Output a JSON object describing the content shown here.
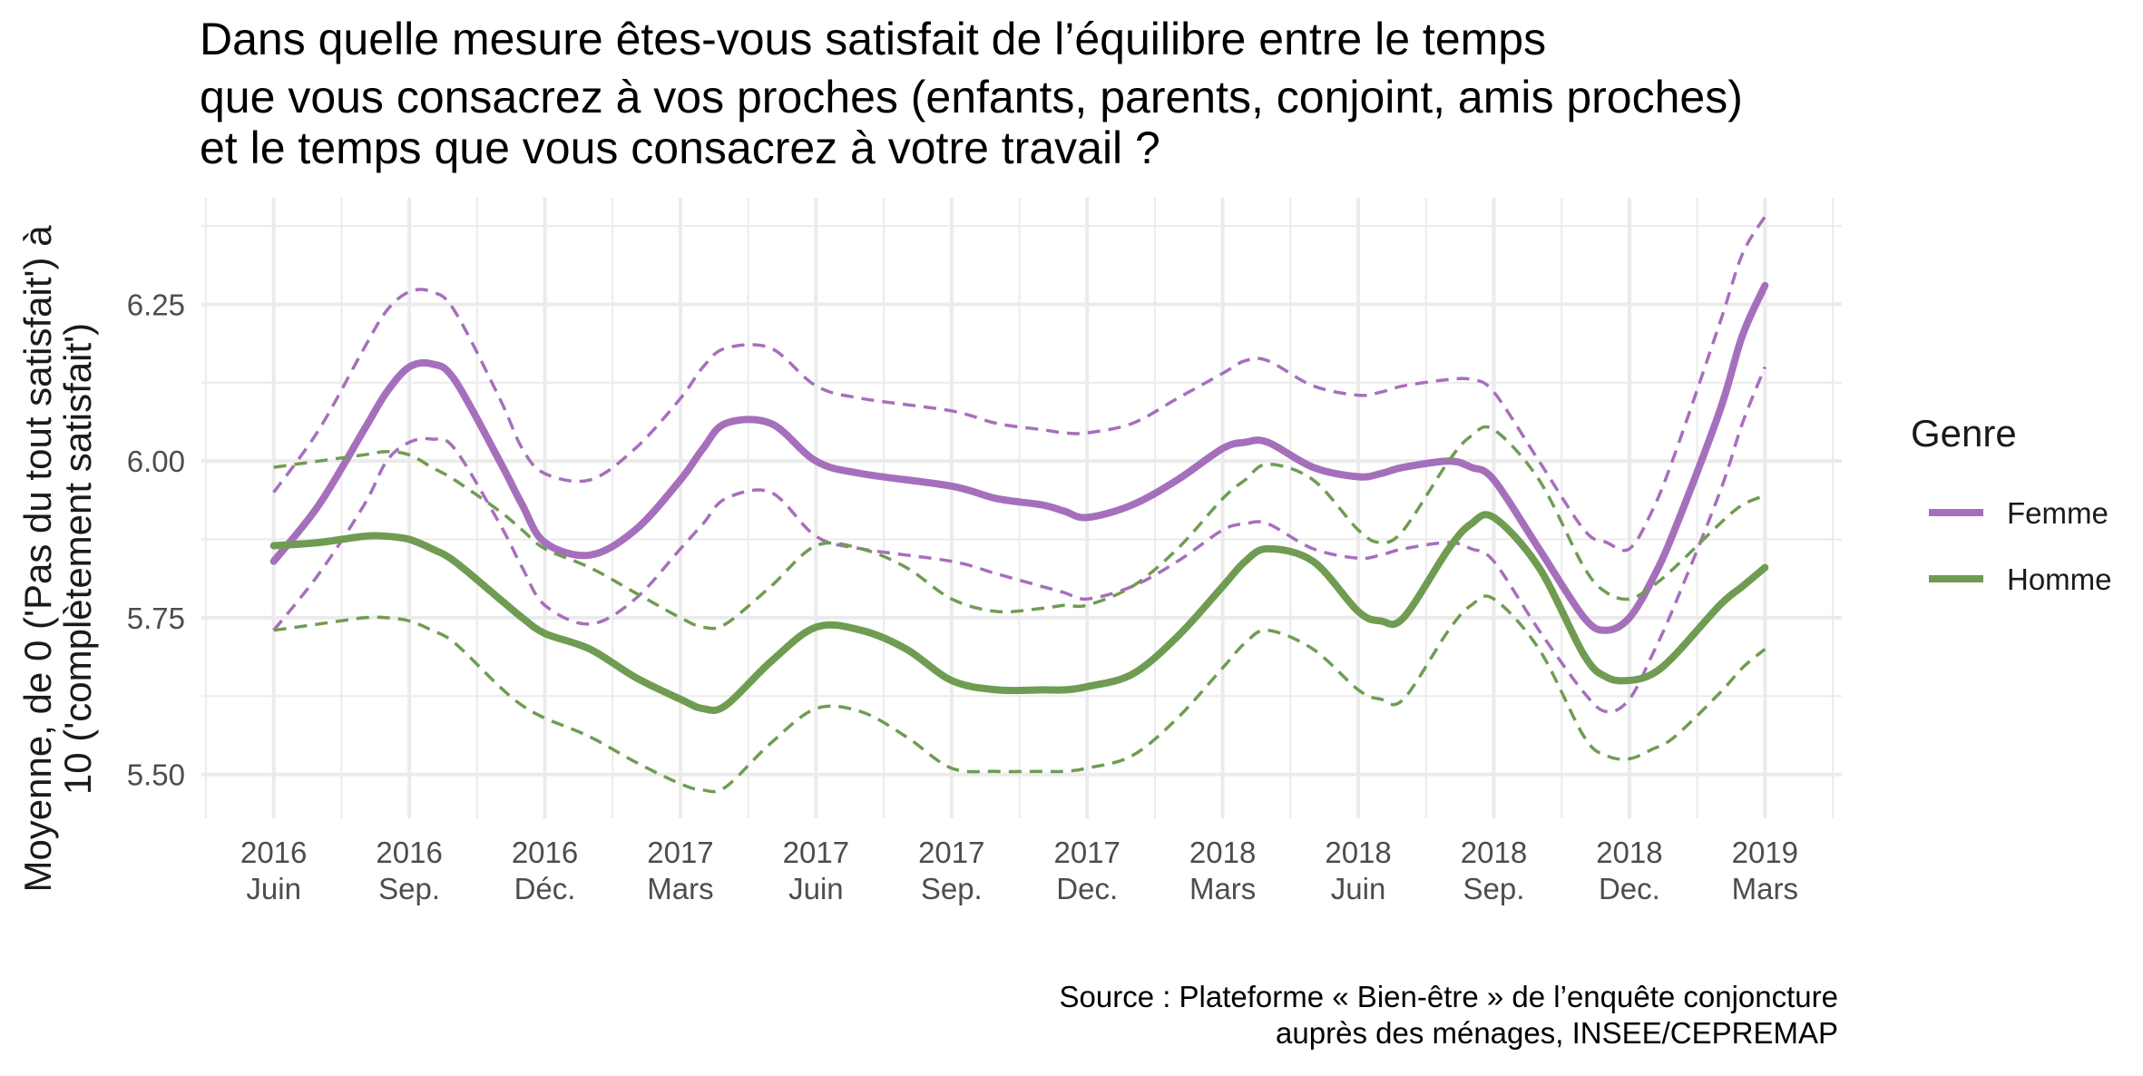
{
  "chart_data": {
    "type": "line",
    "title_lines": [
      "Dans quelle mesure êtes-vous satisfait de l’équilibre entre le temps",
      "que vous consacrez à vos proches (enfants, parents, conjoint, amis proches)",
      "et le temps que vous consacrez à votre travail ?"
    ],
    "ylabel_lines": [
      "Moyenne, de 0 ('Pas du tout satisfait') à",
      "10 ('complètement satisfait')"
    ],
    "caption_lines": [
      "Source : Plateforme « Bien-être » de l’enquête conjoncture",
      "auprès des ménages, INSEE/CEPREMAP"
    ],
    "legend": {
      "title": "Genre",
      "position": "right"
    },
    "x_ticks": [
      {
        "year": "2016",
        "label": "Juin",
        "t": 0
      },
      {
        "year": "2016",
        "label": "Sep.",
        "t": 3
      },
      {
        "year": "2016",
        "label": "Déc.",
        "t": 6
      },
      {
        "year": "2017",
        "label": "Mars",
        "t": 9
      },
      {
        "year": "2017",
        "label": "Juin",
        "t": 12
      },
      {
        "year": "2017",
        "label": "Sep.",
        "t": 15
      },
      {
        "year": "2017",
        "label": "Dec.",
        "t": 18
      },
      {
        "year": "2018",
        "label": "Mars",
        "t": 21
      },
      {
        "year": "2018",
        "label": "Juin",
        "t": 24
      },
      {
        "year": "2018",
        "label": "Sep.",
        "t": 27
      },
      {
        "year": "2018",
        "label": "Dec.",
        "t": 30
      },
      {
        "year": "2019",
        "label": "Mars",
        "t": 33
      }
    ],
    "y_ticks": [
      5.5,
      5.75,
      6.0,
      6.25
    ],
    "ylim": [
      5.43,
      6.42
    ],
    "xlim": [
      -1.6,
      34.7
    ],
    "grid": true,
    "series": [
      {
        "name": "Femme",
        "color": "#a66fbc",
        "t": [
          0,
          1,
          2,
          2.5,
          3,
          3.5,
          4,
          5,
          5.5,
          6,
          7,
          8,
          9,
          9.5,
          10,
          11,
          12,
          13,
          15,
          16,
          17,
          17.5,
          18,
          19,
          20,
          21,
          21.5,
          22,
          23,
          24,
          24.5,
          25,
          26,
          26.5,
          27,
          28,
          29,
          29.5,
          30,
          30.5,
          31,
          32,
          32.5,
          33
        ],
        "mean": [
          5.84,
          5.93,
          6.05,
          6.11,
          6.15,
          6.155,
          6.13,
          6.0,
          5.93,
          5.87,
          5.85,
          5.89,
          5.97,
          6.02,
          6.06,
          6.06,
          6.0,
          5.98,
          5.96,
          5.94,
          5.93,
          5.92,
          5.91,
          5.93,
          5.97,
          6.02,
          6.03,
          6.03,
          5.99,
          5.975,
          5.98,
          5.99,
          6.0,
          5.99,
          5.97,
          5.86,
          5.75,
          5.73,
          5.75,
          5.81,
          5.89,
          6.08,
          6.2,
          6.28
        ],
        "upper": [
          5.95,
          6.05,
          6.18,
          6.24,
          6.27,
          6.27,
          6.24,
          6.1,
          6.02,
          5.98,
          5.97,
          6.02,
          6.1,
          6.15,
          6.18,
          6.18,
          6.12,
          6.1,
          6.08,
          6.06,
          6.05,
          6.045,
          6.045,
          6.06,
          6.1,
          6.14,
          6.16,
          6.16,
          6.12,
          6.105,
          6.11,
          6.12,
          6.13,
          6.13,
          6.11,
          6.0,
          5.89,
          5.87,
          5.86,
          5.92,
          6.01,
          6.22,
          6.33,
          6.39
        ],
        "lower": [
          5.73,
          5.82,
          5.93,
          6.0,
          6.03,
          6.035,
          6.02,
          5.9,
          5.83,
          5.77,
          5.74,
          5.78,
          5.86,
          5.9,
          5.94,
          5.95,
          5.88,
          5.86,
          5.84,
          5.82,
          5.8,
          5.79,
          5.78,
          5.8,
          5.84,
          5.89,
          5.9,
          5.9,
          5.86,
          5.845,
          5.85,
          5.86,
          5.87,
          5.86,
          5.84,
          5.73,
          5.63,
          5.6,
          5.62,
          5.69,
          5.77,
          5.95,
          6.06,
          6.15
        ]
      },
      {
        "name": "Homme",
        "color": "#6f9c52",
        "t": [
          0,
          1,
          2,
          2.5,
          3,
          3.5,
          4,
          5,
          5.5,
          6,
          7,
          8,
          9,
          9.5,
          10,
          11,
          12,
          13,
          14,
          15,
          16,
          17,
          17.5,
          18,
          19,
          20,
          21,
          21.5,
          22,
          23,
          24,
          24.5,
          25,
          26,
          26.5,
          27,
          28,
          29,
          29.5,
          30,
          30.5,
          31,
          32,
          32.5,
          33
        ],
        "mean": [
          5.865,
          5.87,
          5.88,
          5.88,
          5.875,
          5.86,
          5.84,
          5.78,
          5.75,
          5.725,
          5.7,
          5.655,
          5.62,
          5.605,
          5.61,
          5.68,
          5.735,
          5.73,
          5.7,
          5.65,
          5.635,
          5.635,
          5.635,
          5.64,
          5.66,
          5.72,
          5.8,
          5.84,
          5.86,
          5.84,
          5.76,
          5.745,
          5.75,
          5.86,
          5.9,
          5.91,
          5.83,
          5.69,
          5.655,
          5.65,
          5.66,
          5.69,
          5.77,
          5.8,
          5.83
        ],
        "upper": [
          5.99,
          6.0,
          6.01,
          6.015,
          6.01,
          5.99,
          5.97,
          5.92,
          5.89,
          5.86,
          5.83,
          5.79,
          5.75,
          5.735,
          5.74,
          5.8,
          5.865,
          5.86,
          5.83,
          5.78,
          5.76,
          5.765,
          5.77,
          5.77,
          5.8,
          5.86,
          5.94,
          5.97,
          5.995,
          5.97,
          5.89,
          5.87,
          5.89,
          6.0,
          6.04,
          6.05,
          5.97,
          5.83,
          5.79,
          5.78,
          5.8,
          5.83,
          5.9,
          5.93,
          5.945
        ],
        "lower": [
          5.73,
          5.74,
          5.75,
          5.75,
          5.745,
          5.73,
          5.71,
          5.64,
          5.61,
          5.59,
          5.56,
          5.52,
          5.485,
          5.475,
          5.48,
          5.55,
          5.605,
          5.6,
          5.56,
          5.51,
          5.505,
          5.505,
          5.505,
          5.51,
          5.53,
          5.59,
          5.67,
          5.71,
          5.73,
          5.7,
          5.635,
          5.62,
          5.62,
          5.73,
          5.77,
          5.78,
          5.7,
          5.56,
          5.53,
          5.525,
          5.54,
          5.56,
          5.63,
          5.67,
          5.7
        ]
      }
    ]
  }
}
